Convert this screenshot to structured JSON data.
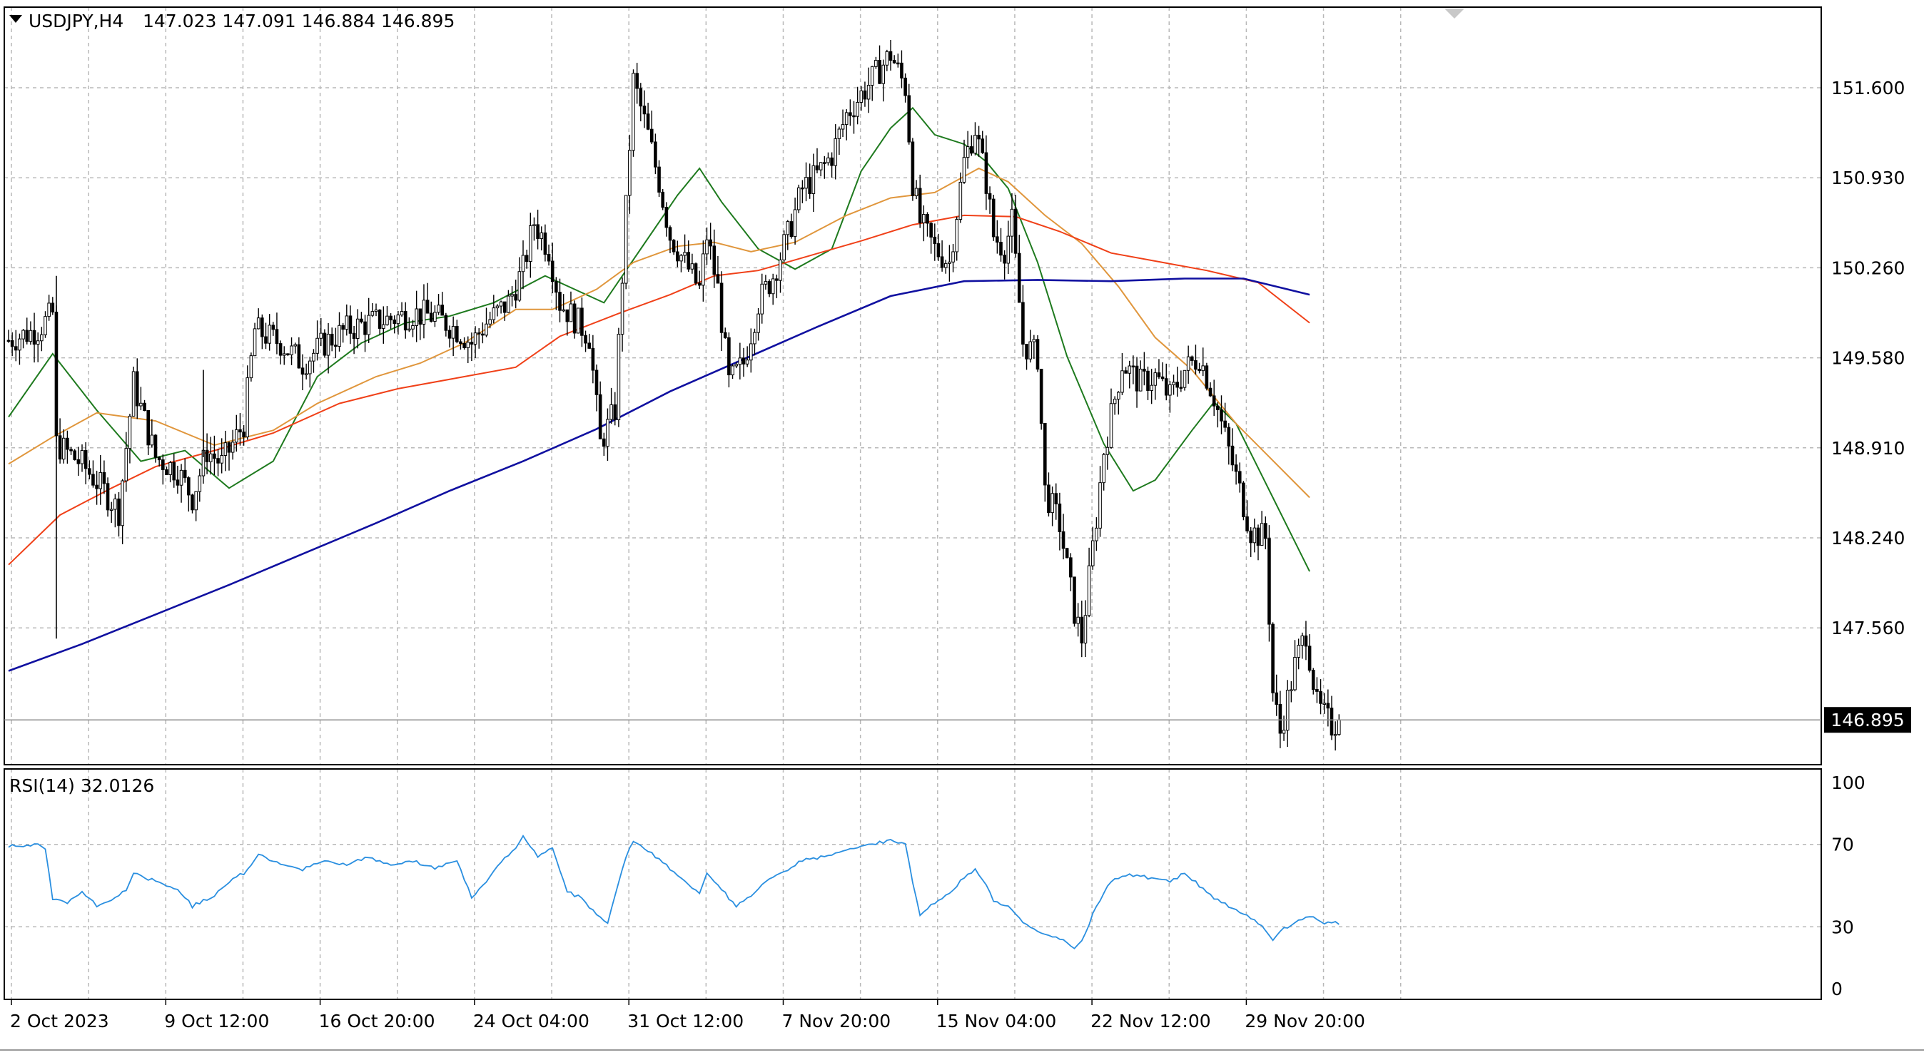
{
  "header": {
    "symbol": "USDJPY,H4",
    "ohlc": "147.023 147.091 146.884 146.895",
    "price_tag": "146.895",
    "rsi_label": "RSI(14) 32.0126"
  },
  "colors": {
    "background": "#ffffff",
    "grid": "#b8b8b8",
    "candle": "#000000",
    "ma_fast": "#1e7a1e",
    "ma_mid": "#e0963c",
    "ma_slow": "#f04018",
    "ma_long": "#1010a0",
    "rsi": "#2a8fe0"
  },
  "chart_data": [
    {
      "type": "candlestick",
      "title": "USDJPY,H4",
      "y_ticks": [
        "151.600",
        "150.930",
        "150.260",
        "149.580",
        "148.910",
        "148.240",
        "147.560"
      ],
      "ylim": [
        146.35,
        152.15
      ],
      "x_ticks": [
        "2 Oct 2023",
        "9 Oct 12:00",
        "16 Oct 20:00",
        "24 Oct 04:00",
        "31 Oct 12:00",
        "7 Nov 20:00",
        "15 Nov 04:00",
        "22 Nov 12:00",
        "29 Nov 20:00"
      ],
      "x_tick_index": [
        0,
        42,
        84,
        126,
        168,
        210,
        252,
        294,
        336
      ],
      "last_price": 146.895,
      "grid": true,
      "close_path": [
        [
          0,
          149.72
        ],
        [
          8,
          149.8
        ],
        [
          12,
          149.92
        ],
        [
          13,
          148.95
        ],
        [
          20,
          148.8
        ],
        [
          26,
          148.6
        ],
        [
          30,
          148.45
        ],
        [
          34,
          149.4
        ],
        [
          40,
          148.85
        ],
        [
          46,
          148.75
        ],
        [
          50,
          148.55
        ],
        [
          54,
          148.9
        ],
        [
          58,
          148.8
        ],
        [
          64,
          149.1
        ],
        [
          67,
          149.8
        ],
        [
          74,
          149.7
        ],
        [
          80,
          149.55
        ],
        [
          86,
          149.7
        ],
        [
          92,
          149.8
        ],
        [
          98,
          149.85
        ],
        [
          104,
          149.88
        ],
        [
          110,
          149.92
        ],
        [
          116,
          149.9
        ],
        [
          122,
          149.8
        ],
        [
          126,
          149.7
        ],
        [
          130,
          149.85
        ],
        [
          136,
          150.0
        ],
        [
          140,
          150.25
        ],
        [
          143,
          150.6
        ],
        [
          147,
          150.4
        ],
        [
          150,
          150.0
        ],
        [
          155,
          149.85
        ],
        [
          158,
          149.75
        ],
        [
          161,
          148.95
        ],
        [
          165,
          149.2
        ],
        [
          168,
          150.7
        ],
        [
          170,
          151.65
        ],
        [
          174,
          151.25
        ],
        [
          177,
          150.9
        ],
        [
          180,
          150.5
        ],
        [
          184,
          150.3
        ],
        [
          188,
          150.1
        ],
        [
          190,
          150.5
        ],
        [
          193,
          150.1
        ],
        [
          196,
          149.4
        ],
        [
          200,
          149.55
        ],
        [
          204,
          150.0
        ],
        [
          208,
          150.2
        ],
        [
          212,
          150.5
        ],
        [
          216,
          150.85
        ],
        [
          220,
          150.95
        ],
        [
          224,
          151.1
        ],
        [
          228,
          151.4
        ],
        [
          232,
          151.55
        ],
        [
          236,
          151.7
        ],
        [
          240,
          151.85
        ],
        [
          244,
          151.6
        ],
        [
          246,
          150.9
        ],
        [
          248,
          150.6
        ],
        [
          252,
          150.4
        ],
        [
          256,
          150.3
        ],
        [
          260,
          151.05
        ],
        [
          263,
          151.3
        ],
        [
          266,
          150.9
        ],
        [
          268,
          150.5
        ],
        [
          271,
          150.4
        ],
        [
          273,
          150.6
        ],
        [
          276,
          149.7
        ],
        [
          280,
          149.6
        ],
        [
          282,
          148.6
        ],
        [
          286,
          148.35
        ],
        [
          290,
          147.7
        ],
        [
          292,
          147.5
        ],
        [
          296,
          148.4
        ],
        [
          298,
          148.9
        ],
        [
          303,
          149.55
        ],
        [
          308,
          149.4
        ],
        [
          312,
          149.45
        ],
        [
          316,
          149.3
        ],
        [
          320,
          149.5
        ],
        [
          324,
          149.6
        ],
        [
          328,
          149.3
        ],
        [
          332,
          148.9
        ],
        [
          338,
          148.3
        ],
        [
          342,
          148.25
        ],
        [
          344,
          147.1
        ],
        [
          346,
          146.8
        ],
        [
          350,
          147.3
        ],
        [
          353,
          147.55
        ],
        [
          356,
          147.0
        ],
        [
          360,
          146.85
        ],
        [
          362,
          146.895
        ]
      ],
      "series": [
        {
          "values": [
            [
              0,
              149.15
            ],
            [
              12,
              149.62
            ],
            [
              24,
              149.2
            ],
            [
              36,
              148.82
            ],
            [
              48,
              148.9
            ],
            [
              60,
              148.62
            ],
            [
              72,
              148.82
            ],
            [
              84,
              149.45
            ],
            [
              96,
              149.7
            ],
            [
              108,
              149.85
            ],
            [
              120,
              149.9
            ],
            [
              132,
              150.0
            ],
            [
              146,
              150.2
            ],
            [
              162,
              150.0
            ],
            [
              172,
              150.4
            ],
            [
              182,
              150.8
            ],
            [
              188,
              151.0
            ],
            [
              194,
              150.75
            ],
            [
              204,
              150.4
            ],
            [
              214,
              150.25
            ],
            [
              224,
              150.4
            ],
            [
              232,
              150.98
            ],
            [
              240,
              151.3
            ],
            [
              246,
              151.45
            ],
            [
              252,
              151.25
            ],
            [
              260,
              151.18
            ],
            [
              266,
              151.05
            ],
            [
              272,
              150.85
            ],
            [
              280,
              150.3
            ],
            [
              288,
              149.6
            ],
            [
              298,
              148.95
            ],
            [
              306,
              148.6
            ],
            [
              312,
              148.68
            ],
            [
              322,
              149.05
            ],
            [
              328,
              149.26
            ],
            [
              334,
              149.1
            ],
            [
              344,
              148.55
            ],
            [
              354,
              148.0
            ]
          ]
        },
        {
          "values": [
            [
              0,
              148.8
            ],
            [
              12,
              149.0
            ],
            [
              24,
              149.18
            ],
            [
              40,
              149.12
            ],
            [
              56,
              148.94
            ],
            [
              72,
              149.05
            ],
            [
              84,
              149.25
            ],
            [
              100,
              149.45
            ],
            [
              112,
              149.55
            ],
            [
              124,
              149.7
            ],
            [
              138,
              149.95
            ],
            [
              148,
              149.95
            ],
            [
              160,
              150.1
            ],
            [
              170,
              150.3
            ],
            [
              182,
              150.42
            ],
            [
              192,
              150.45
            ],
            [
              202,
              150.38
            ],
            [
              214,
              150.45
            ],
            [
              228,
              150.65
            ],
            [
              240,
              150.78
            ],
            [
              252,
              150.82
            ],
            [
              264,
              151.0
            ],
            [
              272,
              150.9
            ],
            [
              282,
              150.65
            ],
            [
              292,
              150.44
            ],
            [
              302,
              150.12
            ],
            [
              312,
              149.74
            ],
            [
              322,
              149.5
            ],
            [
              334,
              149.1
            ],
            [
              354,
              148.55
            ]
          ]
        },
        {
          "values": [
            [
              0,
              148.05
            ],
            [
              14,
              148.42
            ],
            [
              28,
              148.62
            ],
            [
              40,
              148.78
            ],
            [
              56,
              148.9
            ],
            [
              72,
              149.03
            ],
            [
              90,
              149.25
            ],
            [
              106,
              149.36
            ],
            [
              122,
              149.44
            ],
            [
              138,
              149.52
            ],
            [
              150,
              149.75
            ],
            [
              166,
              149.92
            ],
            [
              180,
              150.06
            ],
            [
              192,
              150.2
            ],
            [
              204,
              150.24
            ],
            [
              218,
              150.35
            ],
            [
              232,
              150.46
            ],
            [
              246,
              150.58
            ],
            [
              260,
              150.65
            ],
            [
              274,
              150.64
            ],
            [
              286,
              150.53
            ],
            [
              300,
              150.37
            ],
            [
              314,
              150.3
            ],
            [
              326,
              150.24
            ],
            [
              340,
              150.15
            ],
            [
              354,
              149.85
            ]
          ]
        },
        {
          "values": [
            [
              0,
              147.26
            ],
            [
              20,
              147.46
            ],
            [
              40,
              147.68
            ],
            [
              60,
              147.9
            ],
            [
              80,
              148.13
            ],
            [
              100,
              148.36
            ],
            [
              120,
              148.6
            ],
            [
              140,
              148.82
            ],
            [
              160,
              149.06
            ],
            [
              180,
              149.34
            ],
            [
              200,
              149.58
            ],
            [
              220,
              149.82
            ],
            [
              240,
              150.05
            ],
            [
              260,
              150.16
            ],
            [
              280,
              150.17
            ],
            [
              300,
              150.16
            ],
            [
              320,
              150.18
            ],
            [
              336,
              150.18
            ],
            [
              354,
              150.06
            ]
          ]
        }
      ]
    },
    {
      "type": "line",
      "title": "RSI(14) 32.0126",
      "y_ticks": [
        "100",
        "70",
        "30",
        "0"
      ],
      "ylim": [
        0,
        100
      ],
      "levels": [
        70,
        30
      ],
      "series": [
        {
          "values": [
            [
              0,
              69
            ],
            [
              8,
              70
            ],
            [
              10,
              68
            ],
            [
              12,
              44
            ],
            [
              16,
              42
            ],
            [
              20,
              47
            ],
            [
              24,
              40
            ],
            [
              28,
              43
            ],
            [
              32,
              48
            ],
            [
              34,
              56
            ],
            [
              40,
              52
            ],
            [
              46,
              48
            ],
            [
              50,
              40
            ],
            [
              56,
              45
            ],
            [
              60,
              52
            ],
            [
              64,
              56
            ],
            [
              68,
              65
            ],
            [
              74,
              60
            ],
            [
              80,
              58
            ],
            [
              86,
              62
            ],
            [
              92,
              60
            ],
            [
              98,
              64
            ],
            [
              104,
              60
            ],
            [
              110,
              62
            ],
            [
              116,
              58
            ],
            [
              122,
              62
            ],
            [
              126,
              44
            ],
            [
              130,
              52
            ],
            [
              134,
              62
            ],
            [
              138,
              68
            ],
            [
              140,
              74
            ],
            [
              144,
              64
            ],
            [
              148,
              68
            ],
            [
              152,
              47
            ],
            [
              156,
              44
            ],
            [
              160,
              36
            ],
            [
              163,
              32
            ],
            [
              166,
              52
            ],
            [
              168,
              64
            ],
            [
              170,
              72
            ],
            [
              176,
              64
            ],
            [
              182,
              55
            ],
            [
              188,
              46
            ],
            [
              190,
              56
            ],
            [
              194,
              48
            ],
            [
              198,
              40
            ],
            [
              202,
              45
            ],
            [
              206,
              52
            ],
            [
              210,
              56
            ],
            [
              216,
              62
            ],
            [
              222,
              64
            ],
            [
              228,
              67
            ],
            [
              234,
              70
            ],
            [
              240,
              72
            ],
            [
              244,
              70
            ],
            [
              246,
              52
            ],
            [
              248,
              36
            ],
            [
              252,
              42
            ],
            [
              256,
              46
            ],
            [
              260,
              54
            ],
            [
              263,
              58
            ],
            [
              266,
              50
            ],
            [
              268,
              42
            ],
            [
              272,
              40
            ],
            [
              276,
              32
            ],
            [
              282,
              26
            ],
            [
              286,
              24
            ],
            [
              290,
              20
            ],
            [
              292,
              23
            ],
            [
              296,
              40
            ],
            [
              300,
              52
            ],
            [
              304,
              55
            ],
            [
              310,
              54
            ],
            [
              316,
              52
            ],
            [
              320,
              56
            ],
            [
              324,
              50
            ],
            [
              328,
              44
            ],
            [
              332,
              40
            ],
            [
              336,
              36
            ],
            [
              340,
              32
            ],
            [
              344,
              24
            ],
            [
              346,
              28
            ],
            [
              350,
              32
            ],
            [
              354,
              35
            ],
            [
              358,
              32
            ],
            [
              362,
              32
            ]
          ]
        }
      ]
    }
  ]
}
